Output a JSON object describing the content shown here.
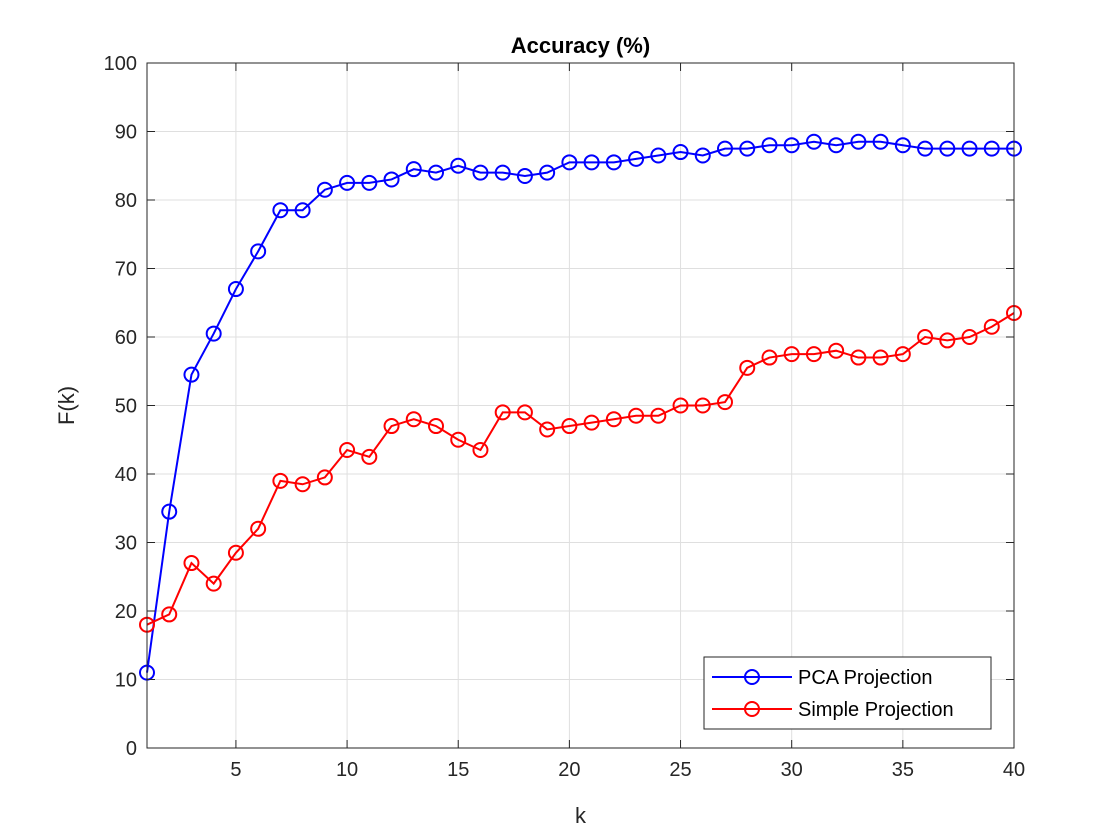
{
  "chart_data": {
    "type": "line",
    "title": "Accuracy (%)",
    "xlabel": "k",
    "ylabel": "F(k)",
    "xlim": [
      1,
      40
    ],
    "ylim": [
      0,
      100
    ],
    "xticks": [
      5,
      10,
      15,
      20,
      25,
      30,
      35,
      40
    ],
    "yticks": [
      0,
      10,
      20,
      30,
      40,
      50,
      60,
      70,
      80,
      90,
      100
    ],
    "grid": true,
    "legend_position": "bottom-right",
    "x": [
      1,
      2,
      3,
      4,
      5,
      6,
      7,
      8,
      9,
      10,
      11,
      12,
      13,
      14,
      15,
      16,
      17,
      18,
      19,
      20,
      21,
      22,
      23,
      24,
      25,
      26,
      27,
      28,
      29,
      30,
      31,
      32,
      33,
      34,
      35,
      36,
      37,
      38,
      39,
      40
    ],
    "series": [
      {
        "name": "PCA Projection",
        "color": "#0000ff",
        "marker": "circle",
        "values": [
          11,
          34.5,
          54.5,
          60.5,
          67,
          72.5,
          78.5,
          78.5,
          81.5,
          82.5,
          82.5,
          83,
          84.5,
          84,
          85,
          84,
          84,
          83.5,
          84,
          85.5,
          85.5,
          85.5,
          86,
          86.5,
          87,
          86.5,
          87.5,
          87.5,
          88,
          88,
          88.5,
          88,
          88.5,
          88.5,
          88,
          87.5,
          87.5,
          87.5,
          87.5,
          87.5
        ]
      },
      {
        "name": "Simple Projection",
        "color": "#ff0000",
        "marker": "circle",
        "values": [
          18,
          19.5,
          27,
          24,
          28.5,
          32,
          39,
          38.5,
          39.5,
          43.5,
          42.5,
          47,
          48,
          47,
          45,
          43.5,
          49,
          49,
          46.5,
          47,
          47.5,
          48,
          48.5,
          48.5,
          50,
          50,
          50.5,
          55.5,
          57,
          57.5,
          57.5,
          58,
          57,
          57,
          57.5,
          60,
          59.5,
          60,
          61.5,
          63.5
        ]
      }
    ]
  }
}
